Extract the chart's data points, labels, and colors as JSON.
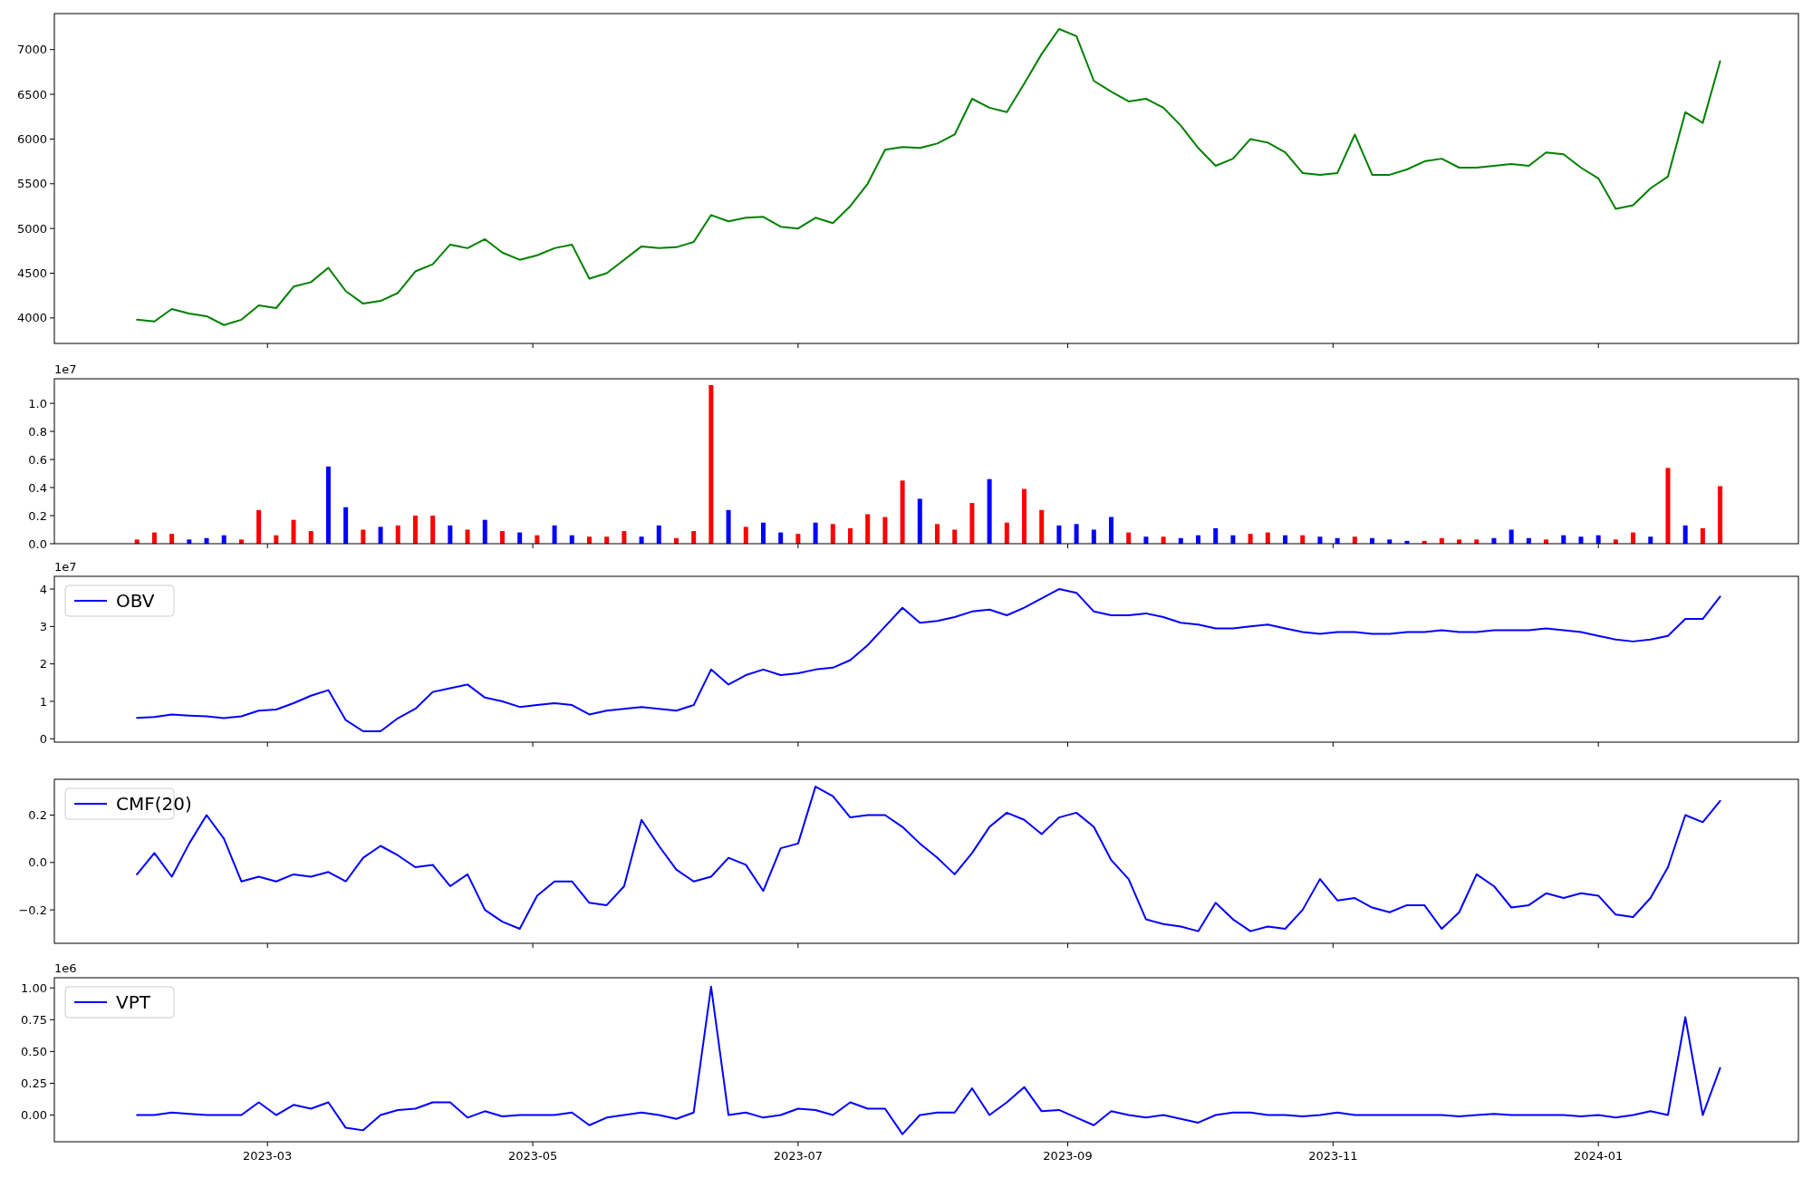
{
  "chart_data": [
    {
      "type": "line",
      "x": [
        "2023-01-30",
        "2023-02-03",
        "2023-02-07",
        "2023-02-11",
        "2023-02-15",
        "2023-02-19",
        "2023-02-23",
        "2023-02-27",
        "2023-03-03",
        "2023-03-07",
        "2023-03-11",
        "2023-03-15",
        "2023-03-19",
        "2023-03-23",
        "2023-03-27",
        "2023-03-31",
        "2023-04-04",
        "2023-04-08",
        "2023-04-12",
        "2023-04-16",
        "2023-04-20",
        "2023-04-24",
        "2023-04-28",
        "2023-05-02",
        "2023-05-06",
        "2023-05-10",
        "2023-05-14",
        "2023-05-18",
        "2023-05-22",
        "2023-05-26",
        "2023-05-30",
        "2023-06-03",
        "2023-06-07",
        "2023-06-11",
        "2023-06-15",
        "2023-06-19",
        "2023-06-23",
        "2023-06-27",
        "2023-07-01",
        "2023-07-05",
        "2023-07-09",
        "2023-07-13",
        "2023-07-17",
        "2023-07-21",
        "2023-07-25",
        "2023-07-29",
        "2023-08-02",
        "2023-08-06",
        "2023-08-10",
        "2023-08-14",
        "2023-08-18",
        "2023-08-22",
        "2023-08-26",
        "2023-08-30",
        "2023-09-03",
        "2023-09-07",
        "2023-09-11",
        "2023-09-15",
        "2023-09-19",
        "2023-09-23",
        "2023-09-27",
        "2023-10-01",
        "2023-10-05",
        "2023-10-09",
        "2023-10-13",
        "2023-10-17",
        "2023-10-21",
        "2023-10-25",
        "2023-10-29",
        "2023-11-02",
        "2023-11-06",
        "2023-11-10",
        "2023-11-14",
        "2023-11-18",
        "2023-11-22",
        "2023-11-26",
        "2023-11-30",
        "2023-12-04",
        "2023-12-08",
        "2023-12-12",
        "2023-12-16",
        "2023-12-20",
        "2023-12-24",
        "2023-12-28",
        "2024-01-01",
        "2024-01-05",
        "2024-01-09",
        "2024-01-13",
        "2024-01-17",
        "2024-01-21",
        "2024-01-25",
        "2024-01-29"
      ],
      "values": [
        3980,
        3960,
        4100,
        4050,
        4020,
        3920,
        3980,
        4140,
        4110,
        4350,
        4400,
        4560,
        4300,
        4160,
        4190,
        4280,
        4520,
        4600,
        4820,
        4780,
        4880,
        4730,
        4650,
        4700,
        4780,
        4820,
        4440,
        4500,
        4650,
        4800,
        4780,
        4790,
        4850,
        5150,
        5080,
        5120,
        5130,
        5020,
        5000,
        5120,
        5060,
        5250,
        5500,
        5880,
        5910,
        5900,
        5950,
        6050,
        6450,
        6350,
        6300,
        6620,
        6950,
        7230,
        7150,
        6650,
        6530,
        6420,
        6450,
        6350,
        6150,
        5900,
        5700,
        5780,
        6000,
        5960,
        5850,
        5620,
        5600,
        5620,
        6050,
        5600,
        5600,
        5660,
        5750,
        5780,
        5680,
        5680,
        5700,
        5720,
        5700,
        5850,
        5830,
        5680,
        5560,
        5220,
        5260,
        5450,
        5580,
        6300,
        6180,
        6870
      ],
      "color": "#008000",
      "xlim": [
        "2023-01-11",
        "2024-02-16"
      ],
      "xticks": [
        "2023-03",
        "2023-05",
        "2023-07",
        "2023-09",
        "2023-11",
        "2024-01"
      ],
      "ylim": [
        3715,
        7402
      ],
      "yticks": [
        4000,
        4500,
        5000,
        5500,
        6000,
        6500,
        7000
      ],
      "tick_labels": "y"
    },
    {
      "type": "bar",
      "x": [
        "2023-01-30",
        "2023-02-03",
        "2023-02-07",
        "2023-02-11",
        "2023-02-15",
        "2023-02-19",
        "2023-02-23",
        "2023-02-27",
        "2023-03-03",
        "2023-03-07",
        "2023-03-11",
        "2023-03-15",
        "2023-03-19",
        "2023-03-23",
        "2023-03-27",
        "2023-03-31",
        "2023-04-04",
        "2023-04-08",
        "2023-04-12",
        "2023-04-16",
        "2023-04-20",
        "2023-04-24",
        "2023-04-28",
        "2023-05-02",
        "2023-05-06",
        "2023-05-10",
        "2023-05-14",
        "2023-05-18",
        "2023-05-22",
        "2023-05-26",
        "2023-05-30",
        "2023-06-03",
        "2023-06-07",
        "2023-06-11",
        "2023-06-15",
        "2023-06-19",
        "2023-06-23",
        "2023-06-27",
        "2023-07-01",
        "2023-07-05",
        "2023-07-09",
        "2023-07-13",
        "2023-07-17",
        "2023-07-21",
        "2023-07-25",
        "2023-07-29",
        "2023-08-02",
        "2023-08-06",
        "2023-08-10",
        "2023-08-14",
        "2023-08-18",
        "2023-08-22",
        "2023-08-26",
        "2023-08-30",
        "2023-09-03",
        "2023-09-07",
        "2023-09-11",
        "2023-09-15",
        "2023-09-19",
        "2023-09-23",
        "2023-09-27",
        "2023-10-01",
        "2023-10-05",
        "2023-10-09",
        "2023-10-13",
        "2023-10-17",
        "2023-10-21",
        "2023-10-25",
        "2023-10-29",
        "2023-11-02",
        "2023-11-06",
        "2023-11-10",
        "2023-11-14",
        "2023-11-18",
        "2023-11-22",
        "2023-11-26",
        "2023-11-30",
        "2023-12-04",
        "2023-12-08",
        "2023-12-12",
        "2023-12-16",
        "2023-12-20",
        "2023-12-24",
        "2023-12-28",
        "2024-01-01",
        "2024-01-05",
        "2024-01-09",
        "2024-01-13",
        "2024-01-17",
        "2024-01-21",
        "2024-01-25",
        "2024-01-29"
      ],
      "values": [
        0.03,
        0.08,
        0.07,
        0.03,
        0.04,
        0.06,
        0.03,
        0.24,
        0.06,
        0.17,
        0.09,
        0.55,
        0.26,
        0.1,
        0.12,
        0.13,
        0.2,
        0.2,
        0.13,
        0.1,
        0.17,
        0.09,
        0.08,
        0.06,
        0.13,
        0.06,
        0.05,
        0.05,
        0.09,
        0.05,
        0.13,
        0.04,
        0.09,
        1.13,
        0.24,
        0.12,
        0.15,
        0.08,
        0.07,
        0.15,
        0.14,
        0.11,
        0.21,
        0.19,
        0.45,
        0.32,
        0.14,
        0.1,
        0.29,
        0.46,
        0.15,
        0.39,
        0.24,
        0.13,
        0.14,
        0.1,
        0.19,
        0.08,
        0.05,
        0.05,
        0.04,
        0.06,
        0.11,
        0.06,
        0.07,
        0.08,
        0.06,
        0.06,
        0.05,
        0.04,
        0.05,
        0.04,
        0.03,
        0.02,
        0.02,
        0.04,
        0.03,
        0.03,
        0.04,
        0.1,
        0.04,
        0.03,
        0.06,
        0.05,
        0.06,
        0.03,
        0.08,
        0.05,
        0.54,
        0.13,
        0.11,
        0.41
      ],
      "colors": [
        "#ff0000",
        "#ff0000",
        "#ff0000",
        "#0000ff",
        "#0000ff",
        "#0000ff",
        "#ff0000",
        "#ff0000",
        "#ff0000",
        "#ff0000",
        "#ff0000",
        "#0000ff",
        "#0000ff",
        "#ff0000",
        "#0000ff",
        "#ff0000",
        "#ff0000",
        "#ff0000",
        "#0000ff",
        "#ff0000",
        "#0000ff",
        "#ff0000",
        "#0000ff",
        "#ff0000",
        "#0000ff",
        "#0000ff",
        "#ff0000",
        "#ff0000",
        "#ff0000",
        "#0000ff",
        "#0000ff",
        "#ff0000",
        "#ff0000",
        "#ff0000",
        "#0000ff",
        "#ff0000",
        "#0000ff",
        "#0000ff",
        "#ff0000",
        "#0000ff",
        "#ff0000",
        "#ff0000",
        "#ff0000",
        "#ff0000",
        "#ff0000",
        "#0000ff",
        "#ff0000",
        "#ff0000",
        "#ff0000",
        "#0000ff",
        "#ff0000",
        "#ff0000",
        "#ff0000",
        "#0000ff",
        "#0000ff",
        "#0000ff",
        "#0000ff",
        "#ff0000",
        "#0000ff",
        "#ff0000",
        "#0000ff",
        "#0000ff",
        "#0000ff",
        "#0000ff",
        "#ff0000",
        "#ff0000",
        "#0000ff",
        "#ff0000",
        "#0000ff",
        "#0000ff",
        "#ff0000",
        "#0000ff",
        "#0000ff",
        "#0000ff",
        "#ff0000",
        "#ff0000",
        "#ff0000",
        "#ff0000",
        "#0000ff",
        "#0000ff",
        "#0000ff",
        "#ff0000",
        "#0000ff",
        "#0000ff",
        "#0000ff",
        "#ff0000",
        "#ff0000",
        "#0000ff",
        "#ff0000",
        "#0000ff",
        "#ff0000",
        "#ff0000"
      ],
      "xlim": [
        "2023-01-11",
        "2024-02-16"
      ],
      "xticks": [
        "2023-03",
        "2023-05",
        "2023-07",
        "2023-09",
        "2023-11",
        "2024-01"
      ],
      "ylim": [
        0,
        1.175
      ],
      "yticks": [
        {
          "value": 0,
          "label": "0.0"
        },
        0.2,
        0.4,
        0.6,
        0.8,
        {
          "value": 1,
          "label": "1.0"
        }
      ],
      "tick_labels": "y",
      "annotations": [
        "1e7"
      ]
    },
    {
      "type": "line",
      "x": [
        "2023-01-30",
        "2023-02-03",
        "2023-02-07",
        "2023-02-11",
        "2023-02-15",
        "2023-02-19",
        "2023-02-23",
        "2023-02-27",
        "2023-03-03",
        "2023-03-07",
        "2023-03-11",
        "2023-03-15",
        "2023-03-19",
        "2023-03-23",
        "2023-03-27",
        "2023-03-31",
        "2023-04-04",
        "2023-04-08",
        "2023-04-12",
        "2023-04-16",
        "2023-04-20",
        "2023-04-24",
        "2023-04-28",
        "2023-05-02",
        "2023-05-06",
        "2023-05-10",
        "2023-05-14",
        "2023-05-18",
        "2023-05-22",
        "2023-05-26",
        "2023-05-30",
        "2023-06-03",
        "2023-06-07",
        "2023-06-11",
        "2023-06-15",
        "2023-06-19",
        "2023-06-23",
        "2023-06-27",
        "2023-07-01",
        "2023-07-05",
        "2023-07-09",
        "2023-07-13",
        "2023-07-17",
        "2023-07-21",
        "2023-07-25",
        "2023-07-29",
        "2023-08-02",
        "2023-08-06",
        "2023-08-10",
        "2023-08-14",
        "2023-08-18",
        "2023-08-22",
        "2023-08-26",
        "2023-08-30",
        "2023-09-03",
        "2023-09-07",
        "2023-09-11",
        "2023-09-15",
        "2023-09-19",
        "2023-09-23",
        "2023-09-27",
        "2023-10-01",
        "2023-10-05",
        "2023-10-09",
        "2023-10-13",
        "2023-10-17",
        "2023-10-21",
        "2023-10-25",
        "2023-10-29",
        "2023-11-02",
        "2023-11-06",
        "2023-11-10",
        "2023-11-14",
        "2023-11-18",
        "2023-11-22",
        "2023-11-26",
        "2023-11-30",
        "2023-12-04",
        "2023-12-08",
        "2023-12-12",
        "2023-12-16",
        "2023-12-20",
        "2023-12-24",
        "2023-12-28",
        "2024-01-01",
        "2024-01-05",
        "2024-01-09",
        "2024-01-13",
        "2024-01-17",
        "2024-01-21",
        "2024-01-25",
        "2024-01-29"
      ],
      "series": [
        {
          "name": "OBV",
          "color": "#0000ff",
          "values": [
            0.56,
            0.58,
            0.65,
            0.62,
            0.6,
            0.55,
            0.6,
            0.75,
            0.78,
            0.95,
            1.15,
            1.3,
            0.5,
            0.2,
            0.2,
            0.55,
            0.8,
            1.25,
            1.35,
            1.45,
            1.1,
            1.0,
            0.85,
            0.9,
            0.95,
            0.9,
            0.65,
            0.75,
            0.8,
            0.85,
            0.8,
            0.75,
            0.9,
            1.85,
            1.45,
            1.7,
            1.85,
            1.7,
            1.75,
            1.85,
            1.9,
            2.1,
            2.5,
            3.0,
            3.5,
            3.1,
            3.15,
            3.25,
            3.4,
            3.45,
            3.3,
            3.5,
            3.75,
            4.0,
            3.9,
            3.4,
            3.3,
            3.3,
            3.35,
            3.25,
            3.1,
            3.05,
            2.95,
            2.95,
            3.0,
            3.05,
            2.95,
            2.85,
            2.8,
            2.85,
            2.85,
            2.8,
            2.8,
            2.85,
            2.85,
            2.9,
            2.85,
            2.85,
            2.9,
            2.9,
            2.9,
            2.95,
            2.9,
            2.85,
            2.75,
            2.65,
            2.6,
            2.65,
            2.75,
            3.2,
            3.2,
            3.8
          ]
        }
      ],
      "xlim": [
        "2023-01-11",
        "2024-02-16"
      ],
      "xticks": [
        "2023-03",
        "2023-05",
        "2023-07",
        "2023-09",
        "2023-11",
        "2024-01"
      ],
      "ylim": [
        -0.09,
        4.34
      ],
      "yticks": [
        0,
        1,
        2,
        3,
        4
      ],
      "tick_labels": "y",
      "legend": "top left",
      "annotations": [
        "1e7"
      ]
    },
    {
      "type": "line",
      "x": [
        "2023-01-30",
        "2023-02-03",
        "2023-02-07",
        "2023-02-11",
        "2023-02-15",
        "2023-02-19",
        "2023-02-23",
        "2023-02-27",
        "2023-03-03",
        "2023-03-07",
        "2023-03-11",
        "2023-03-15",
        "2023-03-19",
        "2023-03-23",
        "2023-03-27",
        "2023-03-31",
        "2023-04-04",
        "2023-04-08",
        "2023-04-12",
        "2023-04-16",
        "2023-04-20",
        "2023-04-24",
        "2023-04-28",
        "2023-05-02",
        "2023-05-06",
        "2023-05-10",
        "2023-05-14",
        "2023-05-18",
        "2023-05-22",
        "2023-05-26",
        "2023-05-30",
        "2023-06-03",
        "2023-06-07",
        "2023-06-11",
        "2023-06-15",
        "2023-06-19",
        "2023-06-23",
        "2023-06-27",
        "2023-07-01",
        "2023-07-05",
        "2023-07-09",
        "2023-07-13",
        "2023-07-17",
        "2023-07-21",
        "2023-07-25",
        "2023-07-29",
        "2023-08-02",
        "2023-08-06",
        "2023-08-10",
        "2023-08-14",
        "2023-08-18",
        "2023-08-22",
        "2023-08-26",
        "2023-08-30",
        "2023-09-03",
        "2023-09-07",
        "2023-09-11",
        "2023-09-15",
        "2023-09-19",
        "2023-09-23",
        "2023-09-27",
        "2023-10-01",
        "2023-10-05",
        "2023-10-09",
        "2023-10-13",
        "2023-10-17",
        "2023-10-21",
        "2023-10-25",
        "2023-10-29",
        "2023-11-02",
        "2023-11-06",
        "2023-11-10",
        "2023-11-14",
        "2023-11-18",
        "2023-11-22",
        "2023-11-26",
        "2023-11-30",
        "2023-12-04",
        "2023-12-08",
        "2023-12-12",
        "2023-12-16",
        "2023-12-20",
        "2023-12-24",
        "2023-12-28",
        "2024-01-01",
        "2024-01-05",
        "2024-01-09",
        "2024-01-13",
        "2024-01-17",
        "2024-01-21",
        "2024-01-25",
        "2024-01-29"
      ],
      "series": [
        {
          "name": "CMF(20)",
          "color": "#0000ff",
          "values": [
            -0.05,
            0.04,
            -0.06,
            0.08,
            0.2,
            0.1,
            -0.08,
            -0.06,
            -0.08,
            -0.05,
            -0.06,
            -0.04,
            -0.08,
            0.02,
            0.07,
            0.03,
            -0.02,
            -0.01,
            -0.1,
            -0.05,
            -0.2,
            -0.25,
            -0.28,
            -0.14,
            -0.08,
            -0.08,
            -0.17,
            -0.18,
            -0.1,
            0.18,
            0.07,
            -0.03,
            -0.08,
            -0.06,
            0.02,
            -0.01,
            -0.12,
            0.06,
            0.08,
            0.32,
            0.28,
            0.19,
            0.2,
            0.2,
            0.15,
            0.08,
            0.02,
            -0.05,
            0.04,
            0.15,
            0.21,
            0.18,
            0.12,
            0.19,
            0.21,
            0.15,
            0.01,
            -0.07,
            -0.24,
            -0.26,
            -0.27,
            -0.29,
            -0.17,
            -0.24,
            -0.29,
            -0.27,
            -0.28,
            -0.2,
            -0.07,
            -0.16,
            -0.15,
            -0.19,
            -0.21,
            -0.18,
            -0.18,
            -0.28,
            -0.21,
            -0.05,
            -0.1,
            -0.19,
            -0.18,
            -0.13,
            -0.15,
            -0.13,
            -0.14,
            -0.22,
            -0.23,
            -0.15,
            -0.02,
            0.2,
            0.17,
            0.26
          ]
        }
      ],
      "xlim": [
        "2023-01-11",
        "2024-02-16"
      ],
      "xticks": [
        "2023-03",
        "2023-05",
        "2023-07",
        "2023-09",
        "2023-11",
        "2024-01"
      ],
      "ylim": [
        -0.341,
        0.351
      ],
      "yticks": [
        {
          "value": -0.2,
          "label": "−0.2"
        },
        {
          "value": 0,
          "label": "0.0"
        },
        0.2
      ],
      "tick_labels": "y",
      "legend": "top left"
    },
    {
      "type": "line",
      "x": [
        "2023-01-30",
        "2023-02-03",
        "2023-02-07",
        "2023-02-11",
        "2023-02-15",
        "2023-02-19",
        "2023-02-23",
        "2023-02-27",
        "2023-03-03",
        "2023-03-07",
        "2023-03-11",
        "2023-03-15",
        "2023-03-19",
        "2023-03-23",
        "2023-03-27",
        "2023-03-31",
        "2023-04-04",
        "2023-04-08",
        "2023-04-12",
        "2023-04-16",
        "2023-04-20",
        "2023-04-24",
        "2023-04-28",
        "2023-05-02",
        "2023-05-06",
        "2023-05-10",
        "2023-05-14",
        "2023-05-18",
        "2023-05-22",
        "2023-05-26",
        "2023-05-30",
        "2023-06-03",
        "2023-06-07",
        "2023-06-11",
        "2023-06-15",
        "2023-06-19",
        "2023-06-23",
        "2023-06-27",
        "2023-07-01",
        "2023-07-05",
        "2023-07-09",
        "2023-07-13",
        "2023-07-17",
        "2023-07-21",
        "2023-07-25",
        "2023-07-29",
        "2023-08-02",
        "2023-08-06",
        "2023-08-10",
        "2023-08-14",
        "2023-08-18",
        "2023-08-22",
        "2023-08-26",
        "2023-08-30",
        "2023-09-03",
        "2023-09-07",
        "2023-09-11",
        "2023-09-15",
        "2023-09-19",
        "2023-09-23",
        "2023-09-27",
        "2023-10-01",
        "2023-10-05",
        "2023-10-09",
        "2023-10-13",
        "2023-10-17",
        "2023-10-21",
        "2023-10-25",
        "2023-10-29",
        "2023-11-02",
        "2023-11-06",
        "2023-11-10",
        "2023-11-14",
        "2023-11-18",
        "2023-11-22",
        "2023-11-26",
        "2023-11-30",
        "2023-12-04",
        "2023-12-08",
        "2023-12-12",
        "2023-12-16",
        "2023-12-20",
        "2023-12-24",
        "2023-12-28",
        "2024-01-01",
        "2024-01-05",
        "2024-01-09",
        "2024-01-13",
        "2024-01-17",
        "2024-01-21",
        "2024-01-25",
        "2024-01-29"
      ],
      "series": [
        {
          "name": "VPT",
          "color": "#0000ff",
          "values": [
            0.0,
            0.0,
            0.02,
            0.01,
            0.0,
            0.0,
            0.0,
            0.1,
            0.0,
            0.08,
            0.05,
            0.1,
            -0.1,
            -0.12,
            0.0,
            0.04,
            0.05,
            0.1,
            0.1,
            -0.02,
            0.03,
            -0.01,
            0.0,
            0.0,
            0.0,
            0.02,
            -0.08,
            -0.02,
            0.0,
            0.02,
            0.0,
            -0.03,
            0.02,
            1.01,
            0.0,
            0.02,
            -0.02,
            0.0,
            0.05,
            0.04,
            0.0,
            0.1,
            0.05,
            0.05,
            -0.15,
            0.0,
            0.02,
            0.02,
            0.21,
            0.0,
            0.1,
            0.22,
            0.03,
            0.04,
            -0.02,
            -0.08,
            0.03,
            0.0,
            -0.02,
            0.0,
            -0.03,
            -0.06,
            0.0,
            0.02,
            0.02,
            0.0,
            0.0,
            -0.01,
            0.0,
            0.02,
            0.0,
            0.0,
            0.0,
            0.0,
            0.0,
            0.0,
            -0.01,
            0.0,
            0.01,
            0.0,
            0.0,
            0.0,
            0.0,
            -0.01,
            0.0,
            -0.02,
            0.0,
            0.03,
            0.0,
            0.77,
            0.0,
            0.37
          ]
        }
      ],
      "xlim": [
        "2023-01-11",
        "2024-02-16"
      ],
      "xticks": [
        "2023-03",
        "2023-05",
        "2023-07",
        "2023-09",
        "2023-11",
        "2024-01"
      ],
      "ylim": [
        -0.21,
        1.08
      ],
      "yticks": [
        {
          "value": 0,
          "label": "0.00"
        },
        {
          "value": 0.25,
          "label": "0.25"
        },
        {
          "value": 0.5,
          "label": "0.50"
        },
        {
          "value": 0.75,
          "label": "0.75"
        },
        {
          "value": 1,
          "label": "1.00"
        }
      ],
      "legend": "top left",
      "annotations": [
        "1e6"
      ]
    }
  ]
}
